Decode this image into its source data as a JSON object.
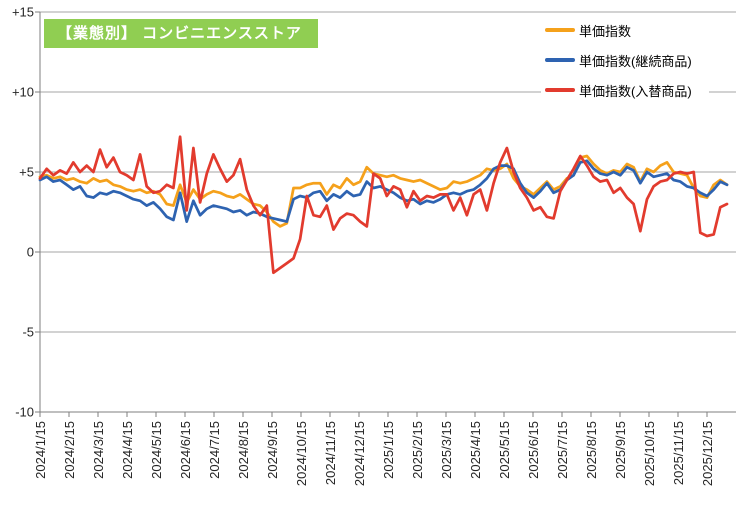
{
  "title": {
    "text": "【業態別】 コンビニエンスストア",
    "bg_color": "#90CE52",
    "text_color": "#FFFFFF"
  },
  "legend": [
    {
      "label": "単価指数",
      "color": "#F5A11B"
    },
    {
      "label": "単価指数(継続商品)",
      "color": "#2E63B1"
    },
    {
      "label": "単価指数(入替商品)",
      "color": "#E23B2E"
    }
  ],
  "chart_data": {
    "type": "line",
    "title": "【業態別】 コンビニエンスストア",
    "x_unit": "weekly",
    "x_range": [
      "2024/1/15",
      "2026/1/5"
    ],
    "x_tick_labels": [
      "2024/1/15",
      "2024/2/15",
      "2024/3/15",
      "2024/4/15",
      "2024/5/15",
      "2024/6/15",
      "2024/7/15",
      "2024/8/15",
      "2024/9/15",
      "2024/10/15",
      "2024/11/15",
      "2024/12/15",
      "2025/1/15",
      "2025/2/15",
      "2025/3/15",
      "2025/4/15",
      "2025/5/15",
      "2025/6/15",
      "2025/7/15",
      "2025/8/15",
      "2025/9/15",
      "2025/10/15",
      "2025/11/15",
      "2025/12/15"
    ],
    "ylim": [
      -10,
      15
    ],
    "y_tick_values": [
      15,
      10,
      5,
      0,
      -5,
      -10
    ],
    "y_tick_labels": [
      "+15",
      "+10",
      "+5",
      "0",
      "-5",
      "-10"
    ],
    "grid": true,
    "grid_color": "#A6A6A6",
    "axis_color": "#7F7F7F",
    "tick_text_color": "#262626",
    "legend_position": "top-right",
    "series": [
      {
        "name": "単価指数",
        "color": "#F5A11B",
        "values": [
          4.7,
          4.8,
          4.6,
          4.7,
          4.5,
          4.6,
          4.4,
          4.3,
          4.6,
          4.4,
          4.5,
          4.2,
          4.1,
          3.9,
          3.8,
          3.9,
          3.7,
          3.8,
          3.6,
          3.0,
          2.9,
          4.2,
          3.1,
          3.9,
          3.3,
          3.6,
          3.8,
          3.7,
          3.5,
          3.4,
          3.6,
          3.3,
          3.0,
          2.9,
          2.5,
          1.9,
          1.6,
          1.8,
          4.0,
          4.0,
          4.2,
          4.3,
          4.3,
          3.6,
          4.2,
          4.0,
          4.6,
          4.2,
          4.4,
          5.3,
          4.9,
          4.8,
          4.7,
          4.8,
          4.6,
          4.5,
          4.4,
          4.5,
          4.3,
          4.1,
          3.9,
          4.0,
          4.4,
          4.3,
          4.4,
          4.6,
          4.8,
          5.2,
          5.1,
          5.2,
          5.5,
          4.6,
          4.1,
          3.9,
          3.6,
          4.0,
          4.4,
          3.9,
          4.1,
          4.6,
          4.8,
          5.9,
          6.0,
          5.5,
          5.1,
          4.9,
          5.1,
          5.0,
          5.5,
          5.3,
          4.4,
          5.2,
          5.0,
          5.4,
          5.6,
          5.0,
          4.9,
          4.8,
          4.0,
          3.5,
          3.4,
          4.2,
          4.5,
          4.2
        ]
      },
      {
        "name": "単価指数(継続商品)",
        "color": "#2E63B1",
        "values": [
          4.5,
          4.7,
          4.4,
          4.5,
          4.2,
          3.9,
          4.1,
          3.5,
          3.4,
          3.7,
          3.6,
          3.8,
          3.7,
          3.5,
          3.3,
          3.2,
          2.9,
          3.1,
          2.7,
          2.2,
          2.0,
          3.7,
          1.9,
          3.2,
          2.3,
          2.7,
          2.9,
          2.8,
          2.7,
          2.5,
          2.6,
          2.3,
          2.5,
          2.4,
          2.2,
          2.1,
          2.0,
          1.9,
          3.3,
          3.5,
          3.4,
          3.7,
          3.8,
          3.2,
          3.6,
          3.4,
          3.8,
          3.5,
          3.6,
          4.4,
          4.0,
          4.1,
          3.9,
          3.7,
          3.4,
          3.2,
          3.3,
          3.0,
          3.2,
          3.1,
          3.3,
          3.6,
          3.7,
          3.6,
          3.8,
          3.9,
          4.2,
          4.6,
          5.2,
          5.4,
          5.4,
          5.2,
          4.3,
          3.7,
          3.4,
          3.8,
          4.3,
          3.7,
          3.9,
          4.5,
          4.8,
          5.6,
          5.7,
          5.2,
          4.9,
          4.8,
          5.0,
          4.8,
          5.3,
          5.1,
          4.3,
          5.0,
          4.7,
          4.8,
          4.9,
          4.5,
          4.4,
          4.1,
          4.0,
          3.7,
          3.5,
          3.9,
          4.4,
          4.2
        ]
      },
      {
        "name": "単価指数(入替商品)",
        "color": "#E23B2E",
        "values": [
          4.6,
          5.2,
          4.8,
          5.1,
          4.9,
          5.6,
          5.0,
          5.4,
          5.0,
          6.4,
          5.3,
          5.9,
          5.0,
          4.8,
          4.5,
          6.1,
          4.1,
          3.7,
          3.8,
          4.2,
          4.0,
          7.2,
          2.6,
          6.5,
          3.1,
          4.9,
          6.1,
          5.2,
          4.4,
          4.8,
          5.8,
          3.9,
          2.9,
          2.3,
          2.9,
          -1.3,
          -1.0,
          -0.7,
          -0.4,
          0.8,
          3.5,
          2.3,
          2.2,
          2.9,
          1.4,
          2.1,
          2.4,
          2.3,
          1.9,
          1.6,
          4.9,
          4.6,
          3.5,
          4.1,
          3.9,
          2.8,
          3.8,
          3.2,
          3.5,
          3.4,
          3.6,
          3.6,
          2.6,
          3.4,
          2.3,
          3.6,
          3.9,
          2.6,
          4.3,
          5.6,
          6.5,
          5.0,
          4.0,
          3.4,
          2.6,
          2.8,
          2.2,
          2.1,
          3.8,
          4.5,
          5.2,
          6.0,
          5.4,
          4.7,
          4.4,
          4.5,
          3.7,
          4.0,
          3.4,
          3.0,
          1.3,
          3.3,
          4.1,
          4.4,
          4.5,
          4.9,
          5.0,
          4.9,
          5.0,
          1.2,
          1.0,
          1.1,
          2.8,
          3.0
        ]
      }
    ]
  }
}
